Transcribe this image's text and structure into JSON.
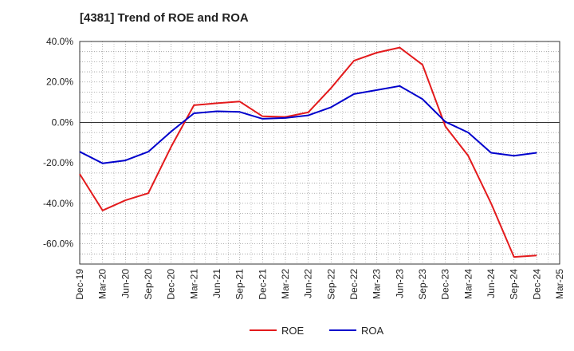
{
  "chart_data": {
    "type": "line",
    "title": "[4381]  Trend of ROE and ROA",
    "xlabel": "",
    "ylabel": "",
    "ylim": [
      -70,
      40
    ],
    "yticks": [
      40,
      20,
      0,
      -20,
      -40,
      -60
    ],
    "ytick_labels": [
      "40.0%",
      "20.0%",
      "0.0%",
      "-20.0%",
      "-40.0%",
      "-60.0%"
    ],
    "grid": true,
    "legend_position": "bottom-center",
    "categories": [
      "Dec-19",
      "Mar-20",
      "Jun-20",
      "Sep-20",
      "Dec-20",
      "Mar-21",
      "Jun-21",
      "Sep-21",
      "Dec-21",
      "Mar-22",
      "Jun-22",
      "Sep-22",
      "Dec-22",
      "Mar-23",
      "Jun-23",
      "Sep-23",
      "Dec-23",
      "Mar-24",
      "Jun-24",
      "Sep-24",
      "Dec-24",
      "Mar-25"
    ],
    "series": [
      {
        "name": "ROE",
        "color": "#e31a1c",
        "values": [
          -25.5,
          -43.5,
          -38.5,
          -35.0,
          -12.0,
          8.5,
          9.5,
          10.3,
          3.0,
          2.7,
          5.0,
          17.0,
          30.5,
          34.5,
          37.0,
          28.5,
          -2.0,
          -16.5,
          -40.0,
          -66.5,
          -65.8,
          null
        ]
      },
      {
        "name": "ROA",
        "color": "#0000cc",
        "values": [
          -14.5,
          -20.2,
          -18.8,
          -14.5,
          -4.5,
          4.5,
          5.5,
          5.2,
          1.8,
          2.2,
          3.5,
          7.5,
          14.0,
          16.0,
          18.0,
          11.5,
          0.3,
          -5.0,
          -15.0,
          -16.5,
          -15.0,
          null
        ]
      }
    ]
  }
}
